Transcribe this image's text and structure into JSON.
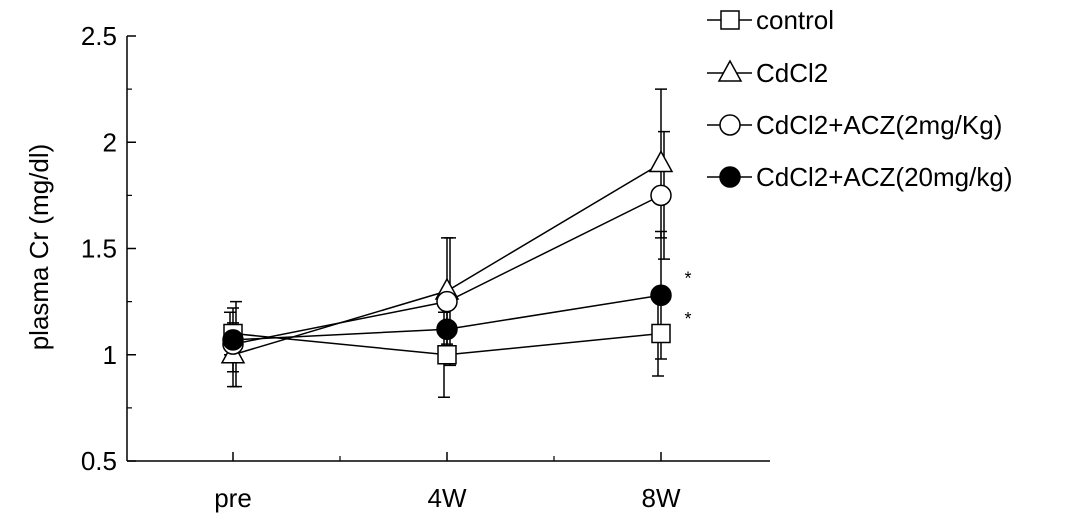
{
  "chart_data": {
    "type": "line",
    "title": "",
    "xlabel": "",
    "ylabel": "plasma Cr (mg/dl)",
    "categories": [
      "pre",
      "4W",
      "8W"
    ],
    "ylim": [
      0.5,
      2.5
    ],
    "yticks": [
      0.5,
      1,
      1.5,
      2,
      2.5
    ],
    "ytick_labels": [
      "0.5",
      "1",
      "1.5",
      "2",
      "2.5"
    ],
    "grid": false,
    "legend_position": "top-right",
    "series": [
      {
        "name": "control",
        "marker": "square",
        "filled": false,
        "values": [
          1.1,
          1.0,
          1.1
        ],
        "errors": [
          0.1,
          0.2,
          0.2
        ]
      },
      {
        "name": "CdCl2",
        "marker": "triangle",
        "filled": false,
        "values": [
          1.0,
          1.3,
          1.9
        ],
        "errors": [
          0.15,
          0.25,
          0.35
        ]
      },
      {
        "name": "CdCl2+ACZ(2mg/Kg)",
        "marker": "circle",
        "filled": false,
        "values": [
          1.05,
          1.25,
          1.75
        ],
        "errors": [
          0.2,
          0.3,
          0.3
        ]
      },
      {
        "name": "CdCl2+ACZ(20mg/kg)",
        "marker": "circle",
        "filled": true,
        "values": [
          1.07,
          1.12,
          1.28
        ],
        "errors": [
          0.15,
          0.1,
          0.3
        ]
      }
    ],
    "annotations": [
      {
        "text": "*",
        "category": "8W",
        "y": 1.33
      },
      {
        "text": "*",
        "category": "8W",
        "y": 1.14
      }
    ]
  }
}
